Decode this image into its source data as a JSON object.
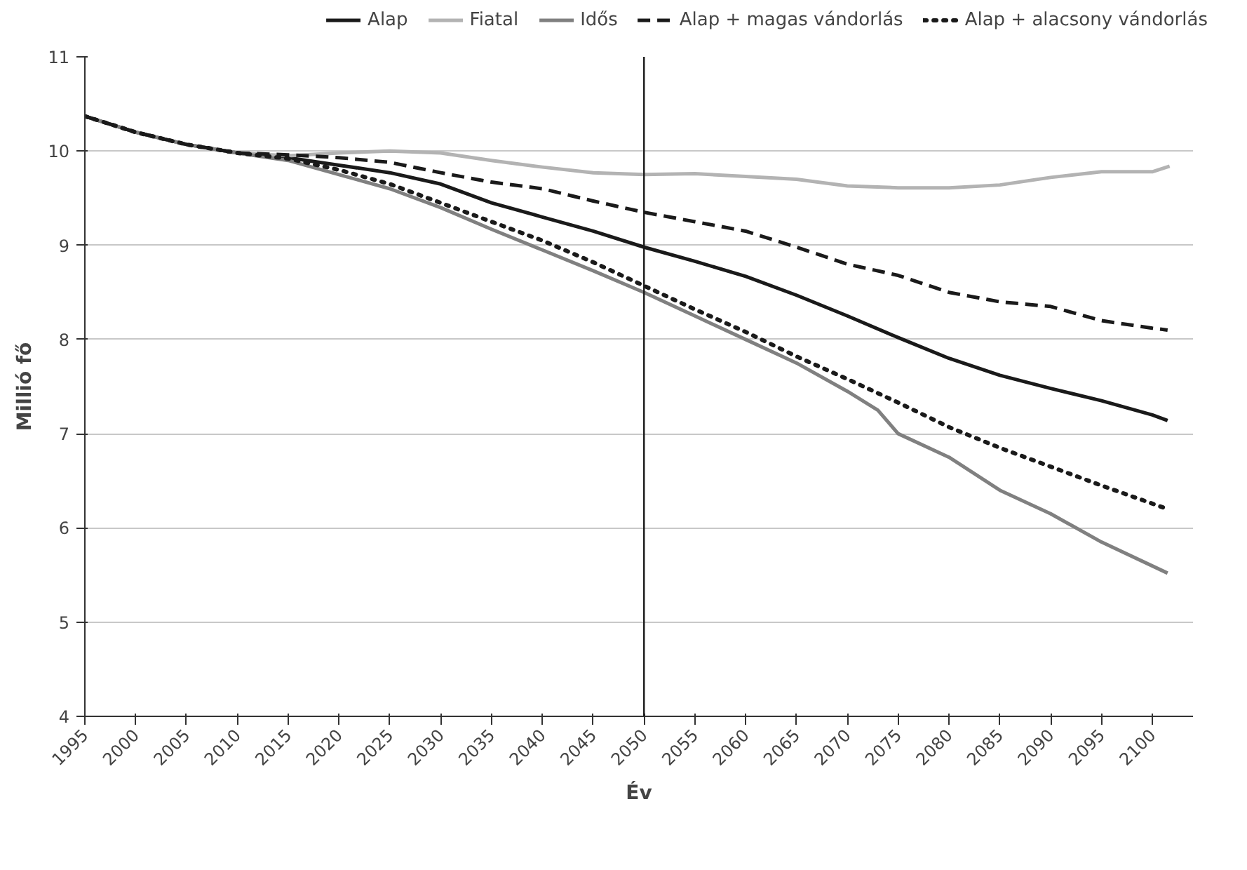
{
  "chart_data": {
    "type": "line",
    "xlabel": "Év",
    "ylabel": "Millió fő",
    "xlim": [
      1995,
      2104
    ],
    "ylim": [
      4,
      11
    ],
    "xticks": [
      1995,
      2000,
      2005,
      2010,
      2015,
      2020,
      2025,
      2030,
      2035,
      2040,
      2045,
      2050,
      2055,
      2060,
      2065,
      2070,
      2075,
      2080,
      2085,
      2090,
      2095,
      2100
    ],
    "yticks": [
      4,
      5,
      6,
      7,
      8,
      9,
      10,
      11
    ],
    "grid": "y",
    "legend": "top",
    "marker": "none",
    "ref_lines": [
      {
        "axis": "x",
        "value": 2050,
        "label": null,
        "color": "#1a1a1a"
      }
    ],
    "series": [
      {
        "name": "Alap",
        "color": "#1a1a1a",
        "line_style": "solid",
        "x": [
          1995,
          2000,
          2005,
          2010,
          2015,
          2020,
          2025,
          2030,
          2035,
          2040,
          2045,
          2050,
          2055,
          2060,
          2065,
          2070,
          2075,
          2080,
          2085,
          2090,
          2095,
          2100,
          2101.5
        ],
        "values": [
          10.37,
          10.2,
          10.07,
          9.98,
          9.93,
          9.85,
          9.77,
          9.65,
          9.45,
          9.3,
          9.15,
          8.98,
          8.83,
          8.67,
          8.47,
          8.25,
          8.02,
          7.8,
          7.62,
          7.48,
          7.35,
          7.2,
          7.14
        ]
      },
      {
        "name": "Fiatal",
        "color": "#b3b3b3",
        "line_style": "solid",
        "x": [
          1995,
          2000,
          2005,
          2010,
          2015,
          2020,
          2025,
          2030,
          2035,
          2040,
          2045,
          2050,
          2055,
          2060,
          2065,
          2070,
          2075,
          2080,
          2085,
          2090,
          2095,
          2100,
          2101.7
        ],
        "values": [
          10.37,
          10.2,
          10.07,
          9.98,
          9.95,
          9.98,
          10.0,
          9.98,
          9.9,
          9.83,
          9.77,
          9.75,
          9.76,
          9.73,
          9.7,
          9.63,
          9.61,
          9.61,
          9.64,
          9.72,
          9.78,
          9.78,
          9.84
        ]
      },
      {
        "name": "Idős",
        "color": "#808080",
        "line_style": "solid",
        "x": [
          1995,
          2000,
          2005,
          2010,
          2015,
          2020,
          2025,
          2030,
          2035,
          2040,
          2045,
          2050,
          2055,
          2060,
          2065,
          2070,
          2073,
          2075,
          2080,
          2085,
          2090,
          2095,
          2101.5
        ],
        "values": [
          10.37,
          10.2,
          10.07,
          9.98,
          9.9,
          9.75,
          9.6,
          9.4,
          9.17,
          8.95,
          8.73,
          8.5,
          8.25,
          8.0,
          7.75,
          7.45,
          7.25,
          7.0,
          6.75,
          6.4,
          6.15,
          5.85,
          5.52
        ]
      },
      {
        "name": "Alap + magas vándorlás",
        "color": "#1a1a1a",
        "line_style": "dashed",
        "x": [
          1995,
          2000,
          2005,
          2010,
          2015,
          2020,
          2025,
          2030,
          2035,
          2040,
          2045,
          2050,
          2055,
          2060,
          2065,
          2070,
          2075,
          2080,
          2085,
          2090,
          2095,
          2100,
          2101.5
        ],
        "values": [
          10.37,
          10.2,
          10.07,
          9.98,
          9.96,
          9.93,
          9.88,
          9.77,
          9.67,
          9.6,
          9.47,
          9.35,
          9.25,
          9.15,
          8.98,
          8.8,
          8.68,
          8.5,
          8.4,
          8.35,
          8.2,
          8.12,
          8.1
        ]
      },
      {
        "name": "Alap + alacsony vándorlás",
        "color": "#1a1a1a",
        "line_style": "dotted",
        "x": [
          1995,
          2000,
          2005,
          2010,
          2015,
          2020,
          2025,
          2030,
          2035,
          2040,
          2045,
          2050,
          2055,
          2060,
          2065,
          2070,
          2075,
          2080,
          2085,
          2090,
          2095,
          2101.5
        ],
        "values": [
          10.37,
          10.2,
          10.07,
          9.98,
          9.92,
          9.8,
          9.65,
          9.45,
          9.25,
          9.05,
          8.82,
          8.57,
          8.32,
          8.08,
          7.82,
          7.58,
          7.33,
          7.07,
          6.85,
          6.65,
          6.45,
          6.2
        ]
      }
    ]
  }
}
